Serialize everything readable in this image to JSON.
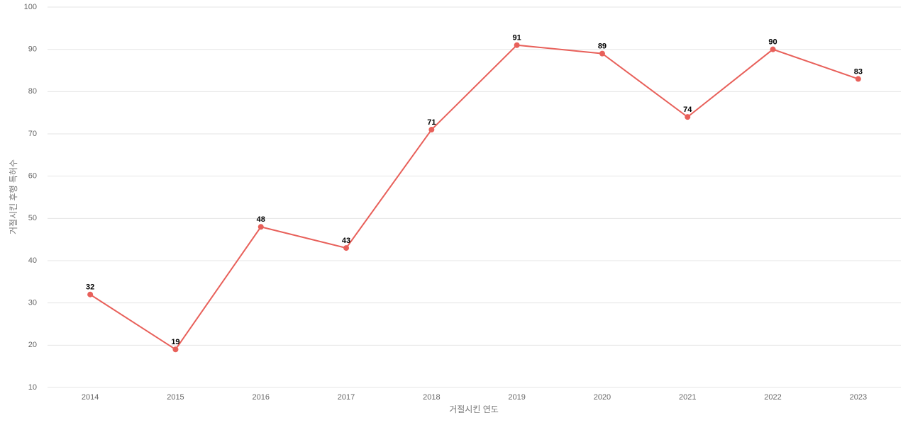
{
  "chart_data": {
    "type": "line",
    "x_label": "거절시킨 연도",
    "y_label": "거절시킨 후행 특허수",
    "categories": [
      "2014",
      "2015",
      "2016",
      "2017",
      "2018",
      "2019",
      "2020",
      "2021",
      "2022",
      "2023"
    ],
    "values": [
      32,
      19,
      48,
      43,
      71,
      91,
      89,
      74,
      90,
      83
    ],
    "color": "#e8605a",
    "ylim": [
      10,
      100
    ],
    "yticks": [
      10,
      20,
      30,
      40,
      50,
      60,
      70,
      80,
      90,
      100
    ],
    "grid": true
  }
}
